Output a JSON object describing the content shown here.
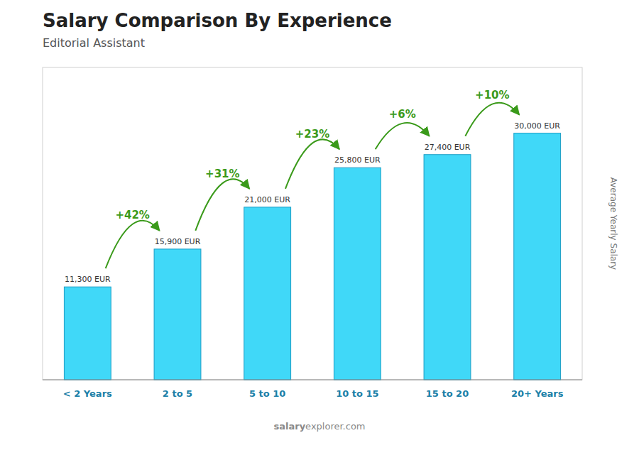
{
  "chart_data": {
    "type": "bar",
    "title": "Salary Comparison By Experience",
    "subtitle": "Editorial Assistant",
    "ylabel": "Average Yearly Salary",
    "categories": [
      "< 2 Years",
      "2 to 5",
      "5 to 10",
      "10 to 15",
      "15 to 20",
      "20+ Years"
    ],
    "values": [
      11300,
      15900,
      21000,
      25800,
      27400,
      30000
    ],
    "value_labels": [
      "11,300 EUR",
      "15,900 EUR",
      "21,000 EUR",
      "25,800 EUR",
      "27,400 EUR",
      "30,000 EUR"
    ],
    "data_labels": true,
    "annotations": [
      "+42%",
      "+31%",
      "+23%",
      "+6%",
      "+10%"
    ],
    "watermark": [
      "salary",
      "explorer.com"
    ],
    "color": "#40d8f8",
    "ylim": [
      0,
      38000
    ],
    "tick_labels": "x",
    "grid": false
  }
}
